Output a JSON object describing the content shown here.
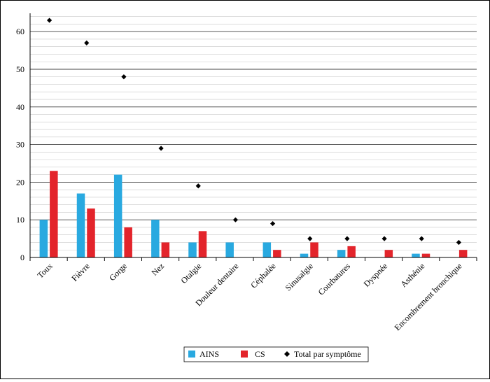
{
  "chart_data": {
    "type": "bar",
    "categories": [
      "Toux",
      "Fièvre",
      "Gorge",
      "Nez",
      "Otalgie",
      "Douleur dentaire",
      "Céphalée",
      "Sinusalgie",
      "Courbatures",
      "Dyspnée",
      "Asthénie",
      "Encombrement bronchique"
    ],
    "series": [
      {
        "name": "AINS",
        "type": "bar",
        "color": "#29a9e0",
        "values": [
          10,
          17,
          22,
          10,
          4,
          4,
          4,
          1,
          2,
          0,
          1,
          0
        ]
      },
      {
        "name": "CS",
        "type": "bar",
        "color": "#e3242b",
        "values": [
          23,
          13,
          8,
          4,
          7,
          0,
          2,
          4,
          3,
          2,
          1,
          2
        ]
      },
      {
        "name": "Total par symptôme",
        "type": "scatter",
        "marker": "diamond",
        "color": "#000000",
        "values": [
          63,
          57,
          48,
          29,
          19,
          10,
          9,
          5,
          5,
          5,
          5,
          4
        ]
      }
    ],
    "yticks": [
      "0",
      "10",
      "20",
      "30",
      "40",
      "50",
      "60"
    ],
    "ylim": [
      0,
      65
    ],
    "grid": true,
    "legend_position": "bottom-center",
    "title": "",
    "xlabel": "",
    "ylabel": ""
  }
}
